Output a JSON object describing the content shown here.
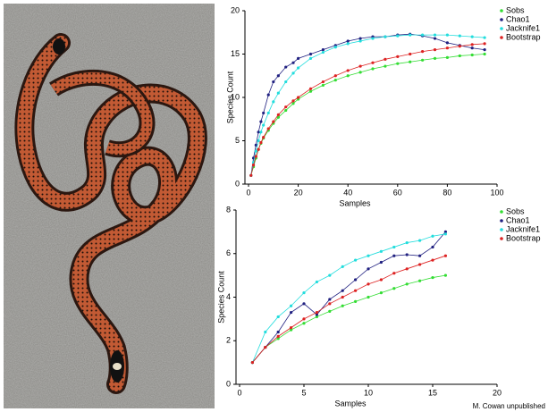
{
  "credit": "M. Cowan unpublished",
  "chart_data": [
    {
      "type": "line",
      "xlabel": "Samples",
      "ylabel": "Species Count",
      "x": [
        1,
        2,
        3,
        4,
        5,
        6,
        8,
        10,
        12,
        15,
        18,
        20,
        25,
        30,
        35,
        40,
        45,
        50,
        55,
        60,
        65,
        70,
        75,
        80,
        85,
        90,
        95
      ],
      "xlim": [
        0,
        100
      ],
      "ylim": [
        0,
        20
      ],
      "xticks": [
        0,
        20,
        40,
        60,
        80,
        100
      ],
      "yticks": [
        0,
        5,
        10,
        15,
        20
      ],
      "series": [
        {
          "name": "Sobs",
          "color": "#33dd33",
          "values": [
            1,
            2,
            3,
            4,
            4.7,
            5.3,
            6.2,
            7,
            7.7,
            8.5,
            9.3,
            9.8,
            10.7,
            11.4,
            12,
            12.5,
            12.9,
            13.3,
            13.6,
            13.9,
            14.1,
            14.3,
            14.5,
            14.6,
            14.8,
            14.9,
            15
          ]
        },
        {
          "name": "Chao1",
          "color": "#202080",
          "values": [
            1,
            3,
            4.5,
            6,
            7.2,
            8.2,
            10.3,
            11.8,
            12.5,
            13.5,
            14,
            14.5,
            15,
            15.5,
            16,
            16.5,
            16.8,
            17,
            17,
            17.2,
            17.3,
            17.1,
            16.8,
            16.3,
            16,
            15.7,
            15.5
          ]
        },
        {
          "name": "Jacknife1",
          "color": "#22dddd",
          "values": [
            1,
            2.5,
            3.8,
            5,
            6,
            6.8,
            8.2,
            9.5,
            10.5,
            11.8,
            12.8,
            13.4,
            14.5,
            15.2,
            15.8,
            16.2,
            16.5,
            16.8,
            17,
            17.1,
            17.2,
            17.2,
            17.2,
            17.2,
            17.1,
            17,
            16.9
          ]
        },
        {
          "name": "Bootstrap",
          "color": "#dd2222",
          "values": [
            1,
            2.2,
            3.2,
            4,
            4.8,
            5.4,
            6.4,
            7.2,
            8,
            8.9,
            9.6,
            10,
            11,
            11.8,
            12.5,
            13.1,
            13.6,
            14,
            14.4,
            14.7,
            15,
            15.3,
            15.5,
            15.7,
            15.9,
            16.1,
            16.2
          ]
        }
      ]
    },
    {
      "type": "line",
      "xlabel": "Samples",
      "ylabel": "Species Count",
      "x": [
        1,
        2,
        3,
        4,
        5,
        6,
        7,
        8,
        9,
        10,
        11,
        12,
        13,
        14,
        15,
        16
      ],
      "xlim": [
        0,
        20
      ],
      "ylim": [
        0,
        8
      ],
      "xticks": [
        0,
        5,
        10,
        15,
        20
      ],
      "yticks": [
        0,
        2,
        4,
        6,
        8
      ],
      "series": [
        {
          "name": "Sobs",
          "color": "#33dd33",
          "values": [
            1,
            1.7,
            2.1,
            2.5,
            2.8,
            3.1,
            3.35,
            3.6,
            3.8,
            4,
            4.2,
            4.4,
            4.6,
            4.75,
            4.9,
            5
          ]
        },
        {
          "name": "Chao1",
          "color": "#202080",
          "values": [
            1,
            1.7,
            2.4,
            3.3,
            3.7,
            3.2,
            3.9,
            4.3,
            4.8,
            5.3,
            5.6,
            5.9,
            5.95,
            5.9,
            6.3,
            7
          ]
        },
        {
          "name": "Jacknife1",
          "color": "#22dddd",
          "values": [
            1,
            2.4,
            3.1,
            3.6,
            4.2,
            4.7,
            5,
            5.4,
            5.7,
            5.9,
            6.1,
            6.3,
            6.5,
            6.6,
            6.8,
            6.9
          ]
        },
        {
          "name": "Bootstrap",
          "color": "#dd2222",
          "values": [
            1,
            1.7,
            2.2,
            2.6,
            3,
            3.3,
            3.7,
            4,
            4.3,
            4.6,
            4.8,
            5.1,
            5.3,
            5.5,
            5.7,
            5.9
          ]
        }
      ]
    }
  ]
}
